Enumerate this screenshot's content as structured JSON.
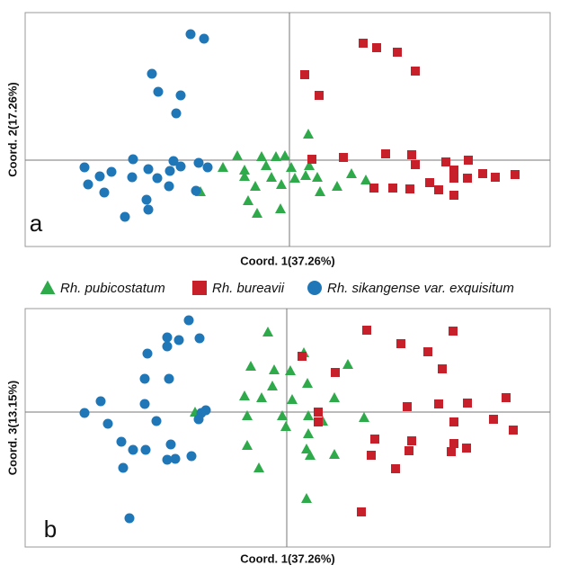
{
  "chart_data": [
    {
      "type": "scatter",
      "label": "a",
      "xlabel": "Coord. 1(37.26%)",
      "ylabel": "Coord. 2(17.26%)",
      "xlim": [
        -2.94,
        2.9
      ],
      "ylim": [
        -0.96,
        1.64
      ],
      "series": [
        {
          "name": "Rh. pubicostatum",
          "color": "#2eaa4a",
          "marker": "triangle",
          "x": [
            0.21,
            -0.58,
            -0.31,
            -0.15,
            -0.05,
            -0.74,
            -0.5,
            -0.26,
            0.02,
            0.22,
            -0.5,
            -0.2,
            0.06,
            0.18,
            0.31,
            0.69,
            0.85,
            -0.99,
            -0.38,
            -0.09,
            0.34,
            0.53,
            -0.46,
            -0.1,
            -0.36
          ],
          "y": [
            0.29,
            0.05,
            0.04,
            0.04,
            0.05,
            -0.08,
            -0.11,
            -0.06,
            -0.08,
            -0.06,
            -0.18,
            -0.19,
            -0.2,
            -0.17,
            -0.19,
            -0.15,
            -0.22,
            -0.35,
            -0.29,
            -0.27,
            -0.35,
            -0.29,
            -0.45,
            -0.54,
            -0.59
          ]
        },
        {
          "name": "Rh. bureavii",
          "color": "#c8202a",
          "marker": "square",
          "x": [
            0.82,
            0.97,
            1.2,
            1.4,
            0.17,
            0.33,
            0.25,
            0.6,
            1.07,
            1.36,
            1.4,
            1.74,
            1.99,
            0.94,
            1.15,
            1.34,
            1.56,
            1.66,
            1.83,
            1.83,
            1.98,
            1.83,
            2.29,
            2.15,
            2.51
          ],
          "y": [
            1.3,
            1.25,
            1.2,
            0.99,
            0.95,
            0.72,
            0.01,
            0.03,
            0.07,
            0.06,
            -0.05,
            -0.02,
            0,
            -0.31,
            -0.31,
            -0.32,
            -0.25,
            -0.33,
            -0.11,
            -0.2,
            -0.2,
            -0.39,
            -0.19,
            -0.15,
            -0.16
          ]
        },
        {
          "name": "Rh. sikangense var. exquisitum",
          "color": "#1f77b8",
          "marker": "circle",
          "x": [
            -1.1,
            -0.95,
            -1.53,
            -1.46,
            -1.21,
            -1.26,
            -1.74,
            -1.29,
            -1.01,
            -1.21,
            -2.28,
            -1.98,
            -1.57,
            -1.33,
            -2.11,
            -1.47,
            -1.75,
            -2.24,
            -2.06,
            -1.34,
            -1.59,
            -1.04,
            -1.83,
            -1.57,
            -0.91
          ],
          "y": [
            1.4,
            1.35,
            0.96,
            0.76,
            0.72,
            0.52,
            0.01,
            -0.01,
            -0.03,
            -0.07,
            -0.08,
            -0.13,
            -0.1,
            -0.12,
            -0.18,
            -0.2,
            -0.19,
            -0.27,
            -0.36,
            -0.29,
            -0.44,
            -0.34,
            -0.63,
            -0.55,
            -0.08
          ]
        }
      ]
    },
    {
      "type": "scatter",
      "label": "b",
      "xlabel": "Coord. 1(37.26%)",
      "ylabel": "Coord. 3(13.15%)",
      "xlim": [
        -2.91,
        2.93
      ],
      "ylim": [
        -1.5,
        1.15
      ],
      "series": [
        {
          "color": "#2eaa4a",
          "marker": "triangle",
          "x": [
            -0.21,
            0.19,
            0.68,
            -0.4,
            -0.14,
            0.04,
            -0.16,
            0.23,
            -0.47,
            -0.28,
            0.53,
            0.06,
            -1.02,
            -0.44,
            -0.05,
            0.24,
            0.4,
            -0.01,
            0.86,
            0.24,
            -0.44,
            0.22,
            0.26,
            0.53,
            -0.31,
            0.22
          ],
          "y": [
            0.89,
            0.66,
            0.53,
            0.51,
            0.47,
            0.46,
            0.29,
            0.32,
            0.18,
            0.16,
            0.16,
            0.14,
            0,
            -0.04,
            -0.04,
            -0.04,
            -0.1,
            -0.16,
            -0.06,
            -0.24,
            -0.37,
            -0.41,
            -0.48,
            -0.47,
            -0.62,
            -0.96
          ]
        },
        {
          "color": "#c8202a",
          "marker": "square",
          "x": [
            0.89,
            1.27,
            1.57,
            1.85,
            0.17,
            0.54,
            1.73,
            0.35,
            0.35,
            1.34,
            1.69,
            2.01,
            2.44,
            1.86,
            2.3,
            2.52,
            0.98,
            1.39,
            1.86,
            2,
            0.94,
            1.36,
            1.83,
            1.21,
            0.83
          ],
          "y": [
            0.91,
            0.76,
            0.67,
            0.9,
            0.62,
            0.44,
            0.48,
            0,
            -0.11,
            0.06,
            0.09,
            0.1,
            0.16,
            -0.11,
            -0.08,
            -0.2,
            -0.3,
            -0.32,
            -0.35,
            -0.4,
            -0.48,
            -0.43,
            -0.44,
            -0.63,
            -1.11
          ]
        },
        {
          "color": "#1f77b8",
          "marker": "circle",
          "x": [
            -1.09,
            -1.33,
            -1.2,
            -0.97,
            -1.33,
            -1.55,
            -1.31,
            -1.58,
            -0.9,
            -0.95,
            -0.98,
            -2.25,
            -2.07,
            -1.58,
            -1.99,
            -1.45,
            -1.84,
            -1.29,
            -1.71,
            -1.57,
            -1.06,
            -1.33,
            -1.24,
            -1.82,
            -1.75
          ],
          "y": [
            1.02,
            0.83,
            0.8,
            0.82,
            0.73,
            0.65,
            0.37,
            0.37,
            0.02,
            -0.01,
            -0.08,
            -0.01,
            0.12,
            0.09,
            -0.13,
            -0.1,
            -0.33,
            -0.36,
            -0.42,
            -0.42,
            -0.49,
            -0.53,
            -0.52,
            -0.62,
            -1.18
          ]
        }
      ]
    }
  ]
}
